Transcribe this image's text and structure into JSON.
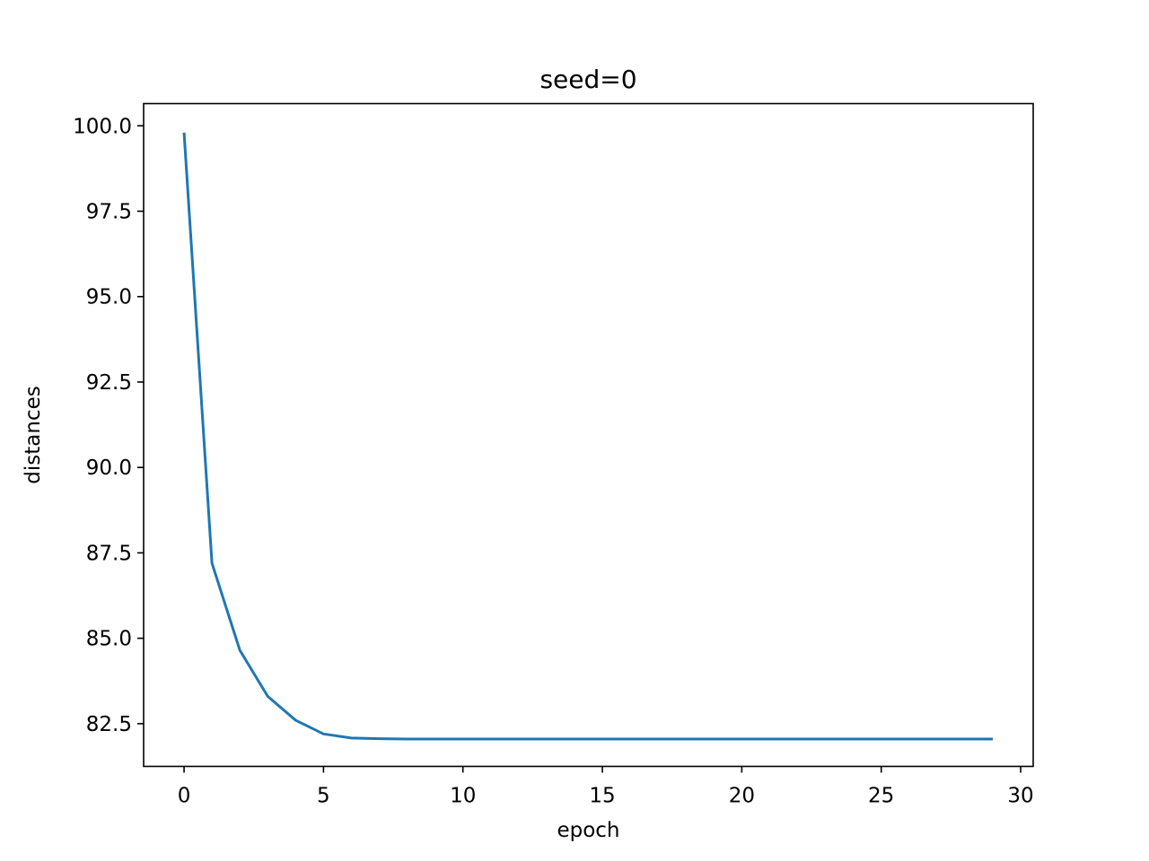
{
  "chart_data": {
    "type": "line",
    "title": "seed=0",
    "xlabel": "epoch",
    "ylabel": "distances",
    "xlim": [
      -1.45,
      30.45
    ],
    "ylim": [
      81.25,
      100.65
    ],
    "xticks": [
      0,
      5,
      10,
      15,
      20,
      25,
      30
    ],
    "xtick_labels": [
      "0",
      "5",
      "10",
      "15",
      "20",
      "25",
      "30"
    ],
    "yticks": [
      82.5,
      85.0,
      87.5,
      90.0,
      92.5,
      95.0,
      97.5,
      100.0
    ],
    "ytick_labels": [
      "82.5",
      "85.0",
      "87.5",
      "90.0",
      "92.5",
      "95.0",
      "97.5",
      "100.0"
    ],
    "grid": false,
    "series": [
      {
        "color": "#1f77b4",
        "x": [
          0,
          1,
          2,
          3,
          4,
          5,
          6,
          7,
          8,
          9,
          10,
          11,
          12,
          13,
          14,
          15,
          16,
          17,
          18,
          19,
          20,
          21,
          22,
          23,
          24,
          25,
          26,
          27,
          28,
          29
        ],
        "y": [
          99.8,
          87.2,
          84.65,
          83.3,
          82.6,
          82.2,
          82.08,
          82.06,
          82.05,
          82.05,
          82.05,
          82.05,
          82.05,
          82.05,
          82.05,
          82.05,
          82.05,
          82.05,
          82.05,
          82.05,
          82.05,
          82.05,
          82.05,
          82.05,
          82.05,
          82.05,
          82.05,
          82.05,
          82.05,
          82.05
        ]
      }
    ]
  }
}
